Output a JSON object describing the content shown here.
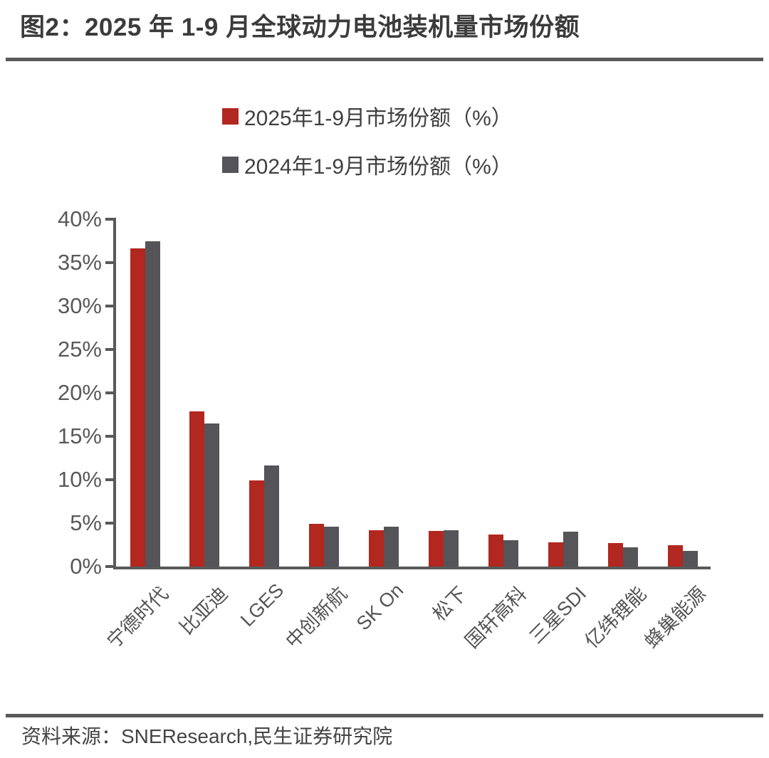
{
  "page": {
    "title": "图2：2025 年 1-9 月全球动力电池装机量市场份额",
    "source": "资料来源：SNEResearch,民生证券研究院"
  },
  "legend": [
    {
      "label": "2025年1-9月市场份额（%）",
      "color": "#B2271F"
    },
    {
      "label": "2024年1-9月市场份额（%）",
      "color": "#545459"
    }
  ],
  "colors": {
    "series_2025": "#B2271F",
    "series_2024": "#545459",
    "axis": "#595959",
    "title_text": "#3b3b3b",
    "tick_text": "#595959"
  },
  "chart_data": {
    "type": "bar",
    "title": "图2：2025 年 1-9 月全球动力电池装机量市场份额",
    "categories": [
      "宁德时代",
      "比亚迪",
      "LGES",
      "中创新航",
      "SK On",
      "松下",
      "国轩高科",
      "三星SDI",
      "亿纬锂能",
      "蜂巢能源"
    ],
    "series": [
      {
        "name": "2025年1-9月市场份额（%）",
        "color": "#B2271F",
        "values": [
          36.6,
          17.9,
          9.9,
          4.9,
          4.2,
          4.1,
          3.7,
          2.8,
          2.7,
          2.5
        ]
      },
      {
        "name": "2024年1-9月市场份额（%）",
        "color": "#545459",
        "values": [
          37.5,
          16.5,
          11.6,
          4.6,
          4.6,
          4.2,
          3.0,
          4.0,
          2.2,
          1.8
        ]
      }
    ],
    "xlabel": "",
    "ylabel": "",
    "ylim": [
      0,
      40
    ],
    "ytick_step": 5,
    "ytick_labels": [
      "0%",
      "5%",
      "10%",
      "15%",
      "20%",
      "25%",
      "30%",
      "35%",
      "40%"
    ],
    "grid": false,
    "legend_position": "top-center"
  }
}
